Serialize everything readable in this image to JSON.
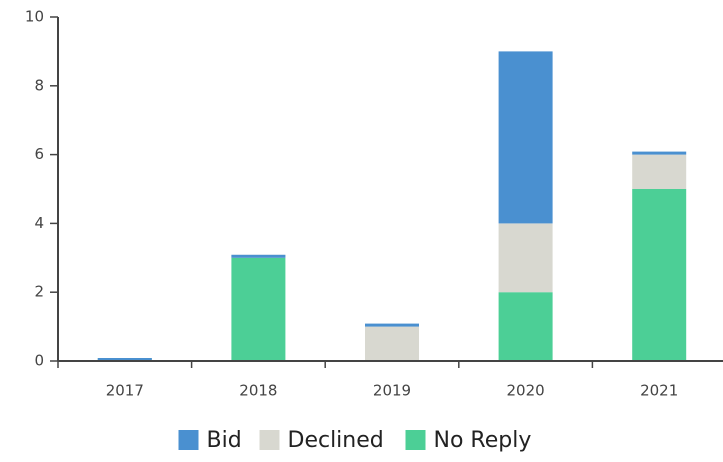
{
  "chart_data": {
    "type": "bar",
    "stacked": true,
    "categories": [
      "2017",
      "2018",
      "2019",
      "2020",
      "2021"
    ],
    "series": [
      {
        "name": "No Reply",
        "color": "#4ccf96",
        "values": [
          0,
          3,
          0,
          2,
          5
        ]
      },
      {
        "name": "Declined",
        "color": "#d8d8d0",
        "values": [
          0,
          0,
          1,
          2,
          1
        ]
      },
      {
        "name": "Bid",
        "color": "#4a90d0",
        "values": [
          0,
          0,
          0,
          5,
          0
        ]
      }
    ],
    "ylim": [
      0,
      10
    ],
    "yticks": [
      0,
      2,
      4,
      6,
      8,
      10
    ],
    "grid": false
  }
}
